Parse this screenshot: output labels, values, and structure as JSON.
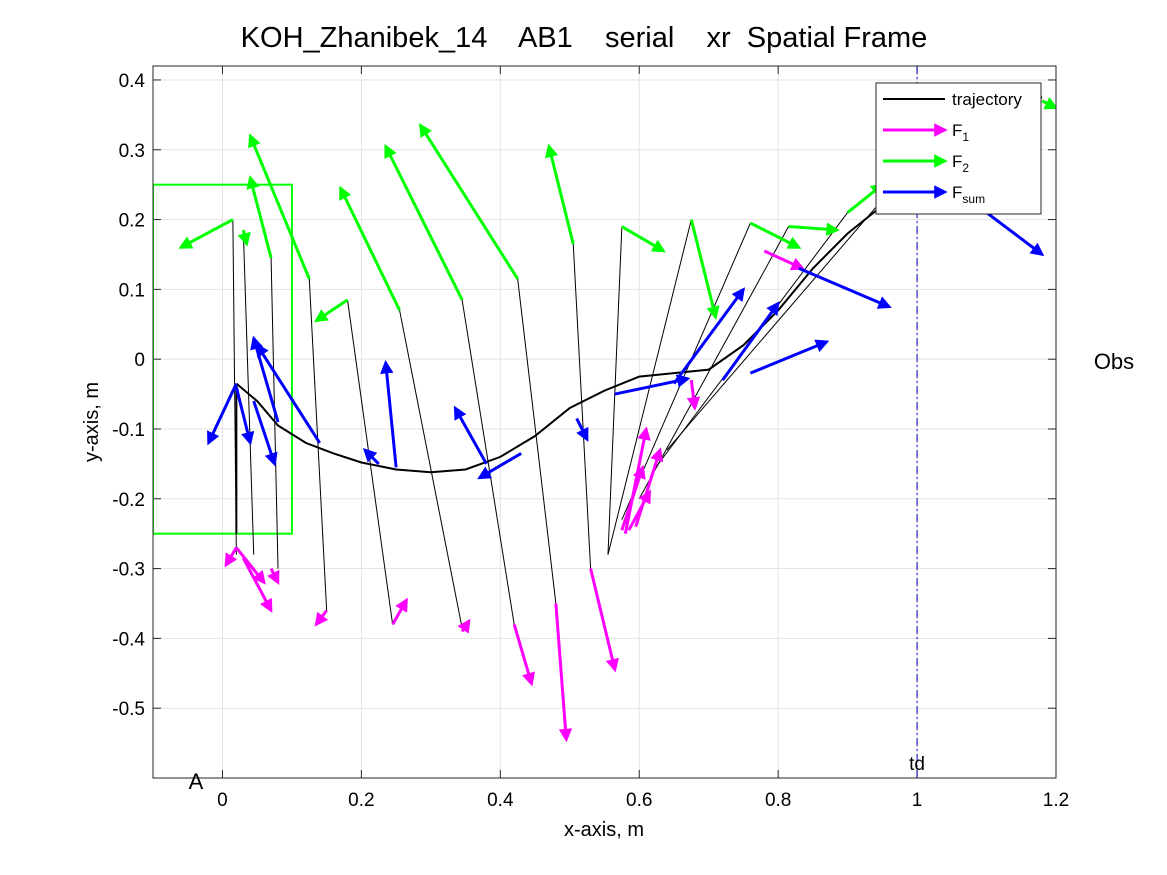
{
  "chart_data": {
    "type": "line",
    "title": "KOH_Zhanibek_14    AB1    serial    xr  Spatial Frame",
    "xlabel": "x-axis, m",
    "ylabel": "y-axis, m",
    "xlim": [
      -0.1,
      1.2
    ],
    "ylim": [
      -0.6,
      0.42
    ],
    "xticks": [
      0,
      0.2,
      0.4,
      0.6,
      0.8,
      1,
      1.2
    ],
    "xtick_labels": [
      "0",
      "0.2",
      "0.4",
      "0.6",
      "0.8",
      "1",
      "1.2"
    ],
    "yticks": [
      -0.5,
      -0.4,
      -0.3,
      -0.2,
      -0.1,
      0,
      0.1,
      0.2,
      0.3,
      0.4
    ],
    "ytick_labels": [
      "-0.5",
      "-0.4",
      "-0.3",
      "-0.2",
      "-0.1",
      "0",
      "0.1",
      "0.2",
      "0.3",
      "0.4"
    ],
    "grid": true,
    "legend_position": "top-right",
    "legend": [
      {
        "key": "trajectory",
        "label": "trajectory",
        "sub": "",
        "color": "#000000"
      },
      {
        "key": "f1",
        "label": "F",
        "sub": "1",
        "color": "#ff00ff"
      },
      {
        "key": "f2",
        "label": "F",
        "sub": "2",
        "color": "#00ff00"
      },
      {
        "key": "fsum",
        "label": "F",
        "sub": "sum",
        "color": "#0000ff"
      }
    ],
    "trajectory": {
      "x": [
        0.02,
        0.05,
        0.08,
        0.12,
        0.16,
        0.2,
        0.25,
        0.3,
        0.35,
        0.4,
        0.45,
        0.5,
        0.55,
        0.6,
        0.65,
        0.7,
        0.75,
        0.8,
        0.85,
        0.9,
        0.95,
        1.0,
        1.05,
        1.1,
        1.15,
        1.18
      ],
      "y": [
        -0.035,
        -0.06,
        -0.095,
        -0.12,
        -0.135,
        -0.148,
        -0.158,
        -0.162,
        -0.158,
        -0.14,
        -0.11,
        -0.07,
        -0.045,
        -0.025,
        -0.02,
        -0.015,
        0.02,
        0.07,
        0.13,
        0.18,
        0.22,
        0.26,
        0.3,
        0.34,
        0.37,
        0.375
      ]
    },
    "start_segment": {
      "x": [
        0.02,
        0.02
      ],
      "y": [
        -0.035,
        -0.25
      ]
    },
    "limbs": [
      [
        [
          0.015,
          0.2
        ],
        [
          0.02,
          -0.28
        ]
      ],
      [
        [
          0.03,
          0.185
        ],
        [
          0.045,
          -0.28
        ]
      ],
      [
        [
          0.07,
          0.145
        ],
        [
          0.08,
          -0.3
        ]
      ],
      [
        [
          0.125,
          0.115
        ],
        [
          0.15,
          -0.36
        ]
      ],
      [
        [
          0.18,
          0.085
        ],
        [
          0.245,
          -0.38
        ]
      ],
      [
        [
          0.255,
          0.07
        ],
        [
          0.345,
          -0.385
        ]
      ],
      [
        [
          0.345,
          0.085
        ],
        [
          0.42,
          -0.38
        ]
      ],
      [
        [
          0.425,
          0.115
        ],
        [
          0.48,
          -0.35
        ]
      ],
      [
        [
          0.505,
          0.165
        ],
        [
          0.53,
          -0.3
        ]
      ],
      [
        [
          0.575,
          0.19
        ],
        [
          0.555,
          -0.28
        ]
      ],
      [
        [
          0.675,
          0.2
        ],
        [
          0.555,
          -0.28
        ]
      ],
      [
        [
          0.76,
          0.195
        ],
        [
          0.575,
          -0.23
        ]
      ],
      [
        [
          0.815,
          0.19
        ],
        [
          0.6,
          -0.2
        ]
      ],
      [
        [
          0.9,
          0.21
        ],
        [
          0.62,
          -0.16
        ]
      ],
      [
        [
          0.96,
          0.24
        ],
        [
          0.64,
          -0.13
        ]
      ]
    ],
    "f1_arrows": [
      [
        [
          0.02,
          -0.27
        ],
        [
          0.005,
          -0.295
        ]
      ],
      [
        [
          0.02,
          -0.27
        ],
        [
          0.06,
          -0.32
        ]
      ],
      [
        [
          0.03,
          -0.285
        ],
        [
          0.07,
          -0.36
        ]
      ],
      [
        [
          0.07,
          -0.3
        ],
        [
          0.08,
          -0.32
        ]
      ],
      [
        [
          0.15,
          -0.36
        ],
        [
          0.135,
          -0.38
        ]
      ],
      [
        [
          0.245,
          -0.38
        ],
        [
          0.265,
          -0.345
        ]
      ],
      [
        [
          0.345,
          -0.39
        ],
        [
          0.355,
          -0.375
        ]
      ],
      [
        [
          0.42,
          -0.38
        ],
        [
          0.445,
          -0.465
        ]
      ],
      [
        [
          0.48,
          -0.35
        ],
        [
          0.495,
          -0.545
        ]
      ],
      [
        [
          0.53,
          -0.3
        ],
        [
          0.565,
          -0.445
        ]
      ],
      [
        [
          0.575,
          -0.245
        ],
        [
          0.605,
          -0.155
        ]
      ],
      [
        [
          0.58,
          -0.25
        ],
        [
          0.61,
          -0.1
        ]
      ],
      [
        [
          0.585,
          -0.245
        ],
        [
          0.615,
          -0.19
        ]
      ],
      [
        [
          0.595,
          -0.24
        ],
        [
          0.63,
          -0.13
        ]
      ],
      [
        [
          0.675,
          -0.03
        ],
        [
          0.68,
          -0.07
        ]
      ],
      [
        [
          0.78,
          0.155
        ],
        [
          0.835,
          0.13
        ]
      ]
    ],
    "f2_arrows": [
      [
        [
          0.015,
          0.2
        ],
        [
          -0.06,
          0.16
        ]
      ],
      [
        [
          0.03,
          0.185
        ],
        [
          0.035,
          0.165
        ]
      ],
      [
        [
          0.07,
          0.145
        ],
        [
          0.04,
          0.26
        ]
      ],
      [
        [
          0.125,
          0.115
        ],
        [
          0.04,
          0.32
        ]
      ],
      [
        [
          0.18,
          0.085
        ],
        [
          0.135,
          0.055
        ]
      ],
      [
        [
          0.255,
          0.07
        ],
        [
          0.17,
          0.245
        ]
      ],
      [
        [
          0.345,
          0.085
        ],
        [
          0.235,
          0.305
        ]
      ],
      [
        [
          0.425,
          0.115
        ],
        [
          0.285,
          0.335
        ]
      ],
      [
        [
          0.505,
          0.165
        ],
        [
          0.47,
          0.305
        ]
      ],
      [
        [
          0.575,
          0.19
        ],
        [
          0.635,
          0.155
        ]
      ],
      [
        [
          0.675,
          0.2
        ],
        [
          0.71,
          0.06
        ]
      ],
      [
        [
          0.76,
          0.195
        ],
        [
          0.83,
          0.16
        ]
      ],
      [
        [
          0.815,
          0.19
        ],
        [
          0.885,
          0.185
        ]
      ],
      [
        [
          0.9,
          0.21
        ],
        [
          0.95,
          0.25
        ]
      ],
      [
        [
          1.18,
          0.37
        ],
        [
          1.2,
          0.36
        ]
      ]
    ],
    "fsum_arrows": [
      [
        [
          0.02,
          -0.035
        ],
        [
          -0.02,
          -0.12
        ]
      ],
      [
        [
          0.02,
          -0.04
        ],
        [
          0.04,
          -0.12
        ]
      ],
      [
        [
          0.045,
          -0.06
        ],
        [
          0.075,
          -0.15
        ]
      ],
      [
        [
          0.08,
          -0.09
        ],
        [
          0.045,
          0.03
        ]
      ],
      [
        [
          0.14,
          -0.12
        ],
        [
          0.05,
          0.02
        ]
      ],
      [
        [
          0.225,
          -0.15
        ],
        [
          0.205,
          -0.13
        ]
      ],
      [
        [
          0.25,
          -0.155
        ],
        [
          0.235,
          -0.005
        ]
      ],
      [
        [
          0.38,
          -0.15
        ],
        [
          0.335,
          -0.07
        ]
      ],
      [
        [
          0.43,
          -0.135
        ],
        [
          0.37,
          -0.17
        ]
      ],
      [
        [
          0.51,
          -0.085
        ],
        [
          0.525,
          -0.115
        ]
      ],
      [
        [
          0.565,
          -0.05
        ],
        [
          0.67,
          -0.028
        ]
      ],
      [
        [
          0.65,
          -0.035
        ],
        [
          0.75,
          0.1
        ]
      ],
      [
        [
          0.72,
          -0.03
        ],
        [
          0.8,
          0.08
        ]
      ],
      [
        [
          0.76,
          -0.02
        ],
        [
          0.87,
          0.025
        ]
      ],
      [
        [
          0.83,
          0.13
        ],
        [
          0.96,
          0.075
        ]
      ],
      [
        [
          1.06,
          0.24
        ],
        [
          1.18,
          0.15
        ]
      ]
    ],
    "obstacle_box": {
      "x": [
        -0.1,
        0.1
      ],
      "y": [
        -0.25,
        0.25
      ],
      "color": "#00ff00"
    },
    "td_line": {
      "x": 1.0,
      "label": "td",
      "color": "#0000cc"
    },
    "corner_label": "A",
    "side_label": "Obs"
  }
}
